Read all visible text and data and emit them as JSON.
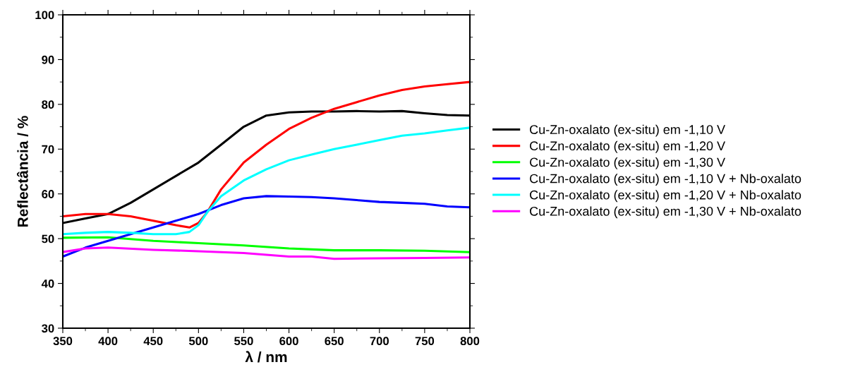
{
  "chart_data": {
    "type": "line",
    "xlabel": "λ / nm",
    "ylabel": "Reflectância / %",
    "xlim": [
      350,
      800
    ],
    "ylim": [
      30,
      100
    ],
    "xticks": [
      350,
      400,
      450,
      500,
      550,
      600,
      650,
      700,
      750,
      800
    ],
    "yticks": [
      30,
      40,
      50,
      60,
      70,
      80,
      90,
      100
    ],
    "grid": false,
    "legend": "right",
    "marker": "none",
    "line_style": "solid",
    "series": [
      {
        "name": "Cu-Zn-oxalato (ex-situ) em -1,10 V",
        "color": "#000000",
        "x": [
          350,
          375,
          400,
          425,
          450,
          475,
          500,
          525,
          550,
          575,
          600,
          625,
          650,
          675,
          700,
          725,
          750,
          775,
          800
        ],
        "values": [
          53.5,
          54.5,
          55.5,
          58,
          61,
          64,
          67,
          71,
          75,
          77.5,
          78.2,
          78.4,
          78.4,
          78.5,
          78.4,
          78.5,
          78,
          77.6,
          77.5
        ]
      },
      {
        "name": "Cu-Zn-oxalato (ex-situ) em -1,20 V",
        "color": "#ff0000",
        "x": [
          350,
          375,
          400,
          425,
          450,
          475,
          490,
          500,
          510,
          525,
          550,
          575,
          600,
          625,
          650,
          675,
          700,
          725,
          750,
          775,
          800
        ],
        "values": [
          55,
          55.5,
          55.5,
          55,
          54,
          53,
          52.5,
          53.5,
          56,
          61,
          67,
          71,
          74.5,
          77,
          79,
          80.5,
          82,
          83.2,
          84,
          84.5,
          85
        ]
      },
      {
        "name": "Cu-Zn-oxalato (ex-situ) em -1,30 V",
        "color": "#00ff00",
        "x": [
          350,
          400,
          450,
          500,
          550,
          600,
          650,
          700,
          750,
          800
        ],
        "values": [
          50.2,
          50.3,
          49.5,
          49,
          48.5,
          47.8,
          47.4,
          47.4,
          47.3,
          47
        ]
      },
      {
        "name": "Cu-Zn-oxalato (ex-situ) em -1,10 V + Nb-oxalato",
        "color": "#0000ff",
        "x": [
          350,
          375,
          400,
          425,
          450,
          475,
          500,
          525,
          550,
          575,
          600,
          625,
          650,
          675,
          700,
          725,
          750,
          775,
          800
        ],
        "values": [
          46,
          48,
          49.5,
          51,
          52.5,
          54,
          55.5,
          57.5,
          59,
          59.5,
          59.4,
          59.3,
          59,
          58.6,
          58.2,
          58,
          57.8,
          57.2,
          57
        ]
      },
      {
        "name": "Cu-Zn-oxalato (ex-situ) em -1,20 V + Nb-oxalato",
        "color": "#00ffff",
        "x": [
          350,
          375,
          400,
          425,
          450,
          475,
          490,
          500,
          510,
          525,
          550,
          575,
          600,
          625,
          650,
          675,
          700,
          725,
          750,
          775,
          800
        ],
        "values": [
          51,
          51.3,
          51.5,
          51.3,
          51,
          51,
          51.5,
          53,
          56,
          59.5,
          63,
          65.5,
          67.5,
          68.8,
          70,
          71,
          72,
          73,
          73.5,
          74.2,
          74.8
        ]
      },
      {
        "name": "Cu-Zn-oxalato (ex-situ) em -1,30 V + Nb-oxalato",
        "color": "#ff00ff",
        "x": [
          350,
          375,
          400,
          450,
          500,
          550,
          600,
          625,
          650,
          700,
          750,
          800
        ],
        "values": [
          47,
          47.8,
          48,
          47.5,
          47.2,
          46.8,
          46,
          46,
          45.5,
          45.6,
          45.7,
          45.8
        ]
      }
    ]
  }
}
